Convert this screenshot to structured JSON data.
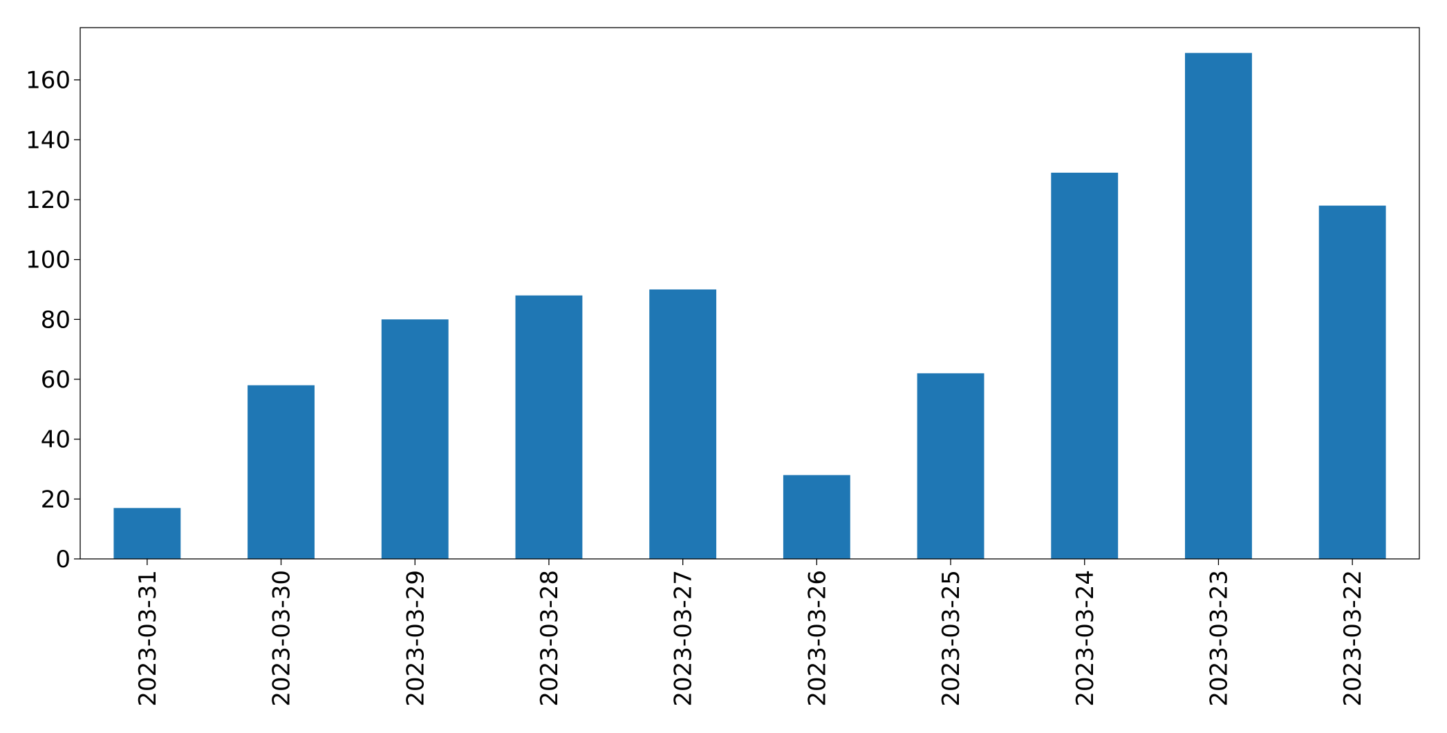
{
  "chart_data": {
    "type": "bar",
    "categories": [
      "2023-03-31",
      "2023-03-30",
      "2023-03-29",
      "2023-03-28",
      "2023-03-27",
      "2023-03-26",
      "2023-03-25",
      "2023-03-24",
      "2023-03-23",
      "2023-03-22"
    ],
    "values": [
      17,
      58,
      80,
      88,
      90,
      28,
      62,
      129,
      169,
      118
    ],
    "color": "#1f77b4",
    "ylim": [
      0,
      177.45
    ],
    "yticks": [
      0,
      20,
      40,
      60,
      80,
      100,
      120,
      140,
      160
    ],
    "grid": false
  }
}
